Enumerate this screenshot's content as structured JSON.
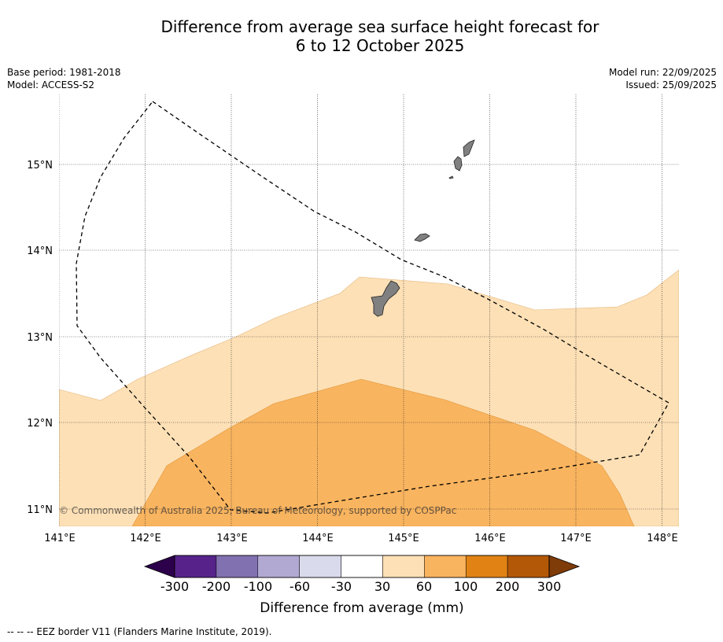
{
  "title_line1": "Difference from average sea surface height forecast for",
  "title_line2": "6 to 12 October 2025",
  "meta": {
    "base_period": "Base period: 1981-2018",
    "model": "Model: ACCESS-S2",
    "model_run": "Model run: 22/09/2025",
    "issued": "Issued: 25/09/2025"
  },
  "map": {
    "lon_range": [
      141.0,
      148.2
    ],
    "lat_range": [
      10.8,
      15.8
    ],
    "lon_ticks": [
      "141°E",
      "142°E",
      "143°E",
      "144°E",
      "145°E",
      "146°E",
      "147°E",
      "148°E"
    ],
    "lat_ticks": [
      "11°N",
      "12°N",
      "13°N",
      "14°N",
      "15°N"
    ],
    "copyright": "© Commonwealth of Australia 2025, Bureau of Meteorology, supported by COSPPac",
    "layers": [
      {
        "name": "30 to 60 mm",
        "color": "#fde0b6"
      },
      {
        "name": "60 to 100 mm",
        "color": "#f9b45f"
      }
    ],
    "land_color": "#808080",
    "eez_border": "dashed"
  },
  "colorbar": {
    "label": "Difference from average (mm)",
    "ticks": [
      "-300",
      "-200",
      "-100",
      "-60",
      "-30",
      "30",
      "60",
      "100",
      "200",
      "300"
    ],
    "colors": [
      "#57238b",
      "#8271b1",
      "#b2a9d3",
      "#d9daec",
      "#ffffff",
      "#fde0b6",
      "#f9b45f",
      "#e08214",
      "#b35806"
    ],
    "under_color": "#2d004b",
    "over_color": "#7f3b08"
  },
  "footer": "--  --  -- EEZ border V11 (Flanders Marine Institute, 2019)."
}
